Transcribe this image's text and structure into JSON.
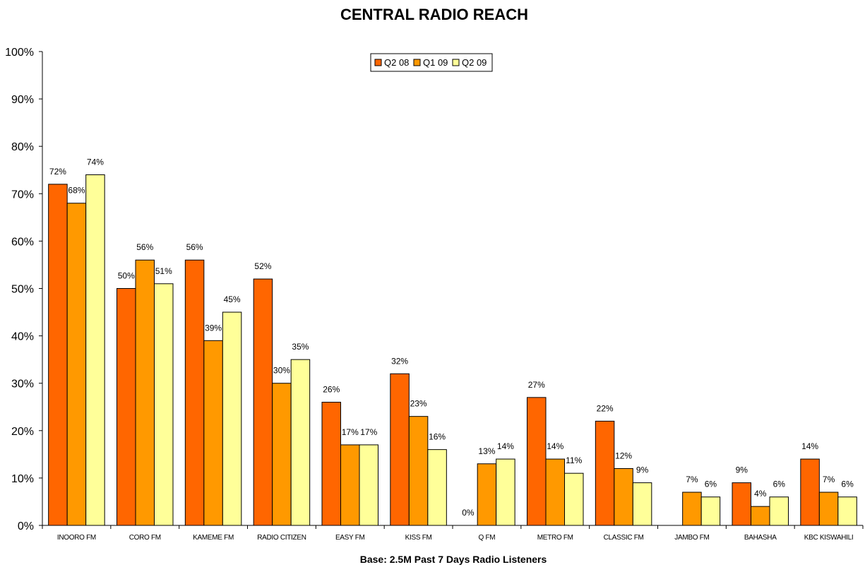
{
  "chart_data": {
    "type": "bar",
    "title": "CENTRAL RADIO REACH",
    "footer": "Base: 2.5M Past 7 Days Radio Listeners",
    "xlabel": "",
    "ylabel": "",
    "ylim": [
      0,
      100
    ],
    "yticks": [
      "0%",
      "10%",
      "20%",
      "30%",
      "40%",
      "50%",
      "60%",
      "70%",
      "80%",
      "90%",
      "100%"
    ],
    "grid": false,
    "legend_position": "top-center",
    "categories": [
      "INOORO FM",
      "CORO FM",
      "KAMEME FM",
      "RADIO CITIZEN",
      "EASY FM",
      "KISS FM",
      "Q FM",
      "METRO FM",
      "CLASSIC FM",
      "JAMBO FM",
      "BAHASHA",
      "KBC KISWAHILI"
    ],
    "series": [
      {
        "name": "Q2 08",
        "color": "#ff6600",
        "values": [
          72,
          50,
          56,
          52,
          26,
          32,
          0,
          27,
          22,
          null,
          9,
          14
        ],
        "labels": [
          "72%",
          "50%",
          "56%",
          "52%",
          "26%",
          "32%",
          "0%",
          "27%",
          "22%",
          "",
          "9%",
          "14%"
        ]
      },
      {
        "name": "Q1 09",
        "color": "#ff9900",
        "values": [
          68,
          56,
          39,
          30,
          17,
          23,
          13,
          14,
          12,
          7,
          4,
          7
        ],
        "labels": [
          "68%",
          "56%",
          "39%",
          "30%",
          "17%",
          "23%",
          "13%",
          "14%",
          "12%",
          "7%",
          "4%",
          "7%"
        ]
      },
      {
        "name": "Q2 09",
        "color": "#ffff99",
        "values": [
          74,
          51,
          45,
          35,
          17,
          16,
          14,
          11,
          9,
          6,
          6,
          6
        ],
        "labels": [
          "74%",
          "51%",
          "45%",
          "35%",
          "17%",
          "16%",
          "14%",
          "11%",
          "9%",
          "6%",
          "6%",
          "6%"
        ]
      }
    ]
  }
}
